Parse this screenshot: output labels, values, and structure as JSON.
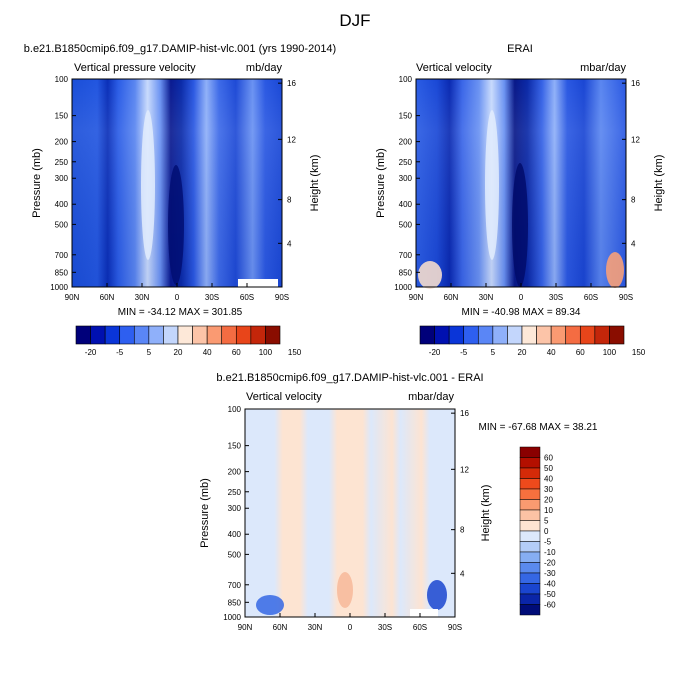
{
  "figure_title": "DJF",
  "chart_data": [
    {
      "type": "heatmap",
      "title": "b.e21.B1850cmip6.f09_g17.DAMIP-hist-vlc.001 (yrs 1990-2014)",
      "subtitle_left": "Vertical pressure velocity",
      "subtitle_right": "mb/day",
      "ylabel": "Pressure (mb)",
      "ylabel_right": "Height (km)",
      "x_ticks": [
        "90N",
        "60N",
        "30N",
        "0",
        "30S",
        "60S",
        "90S"
      ],
      "y_ticks": [
        "100",
        "150",
        "200",
        "250",
        "300",
        "400",
        "500",
        "700",
        "850",
        "1000"
      ],
      "y_ticks_right": [
        "16",
        "12",
        "8",
        "4"
      ],
      "stats": "MIN = -34.12  MAX = 301.85",
      "colorbar": {
        "orientation": "horizontal",
        "labels": [
          "-20",
          "-5",
          "5",
          "20",
          "40",
          "60",
          "100",
          "150"
        ],
        "colors": [
          "#00007a",
          "#0010b0",
          "#0a35d8",
          "#2e5ff0",
          "#5a86f6",
          "#8fb0fa",
          "#c3d6fc",
          "#fde8d8",
          "#fcc4a8",
          "#fa9a72",
          "#f46c42",
          "#e8451a",
          "#c4260a",
          "#8a0d00"
        ]
      }
    },
    {
      "type": "heatmap",
      "title": "ERAI",
      "subtitle_left": "Vertical velocity",
      "subtitle_right": "mbar/day",
      "ylabel": "Pressure (mb)",
      "ylabel_right": "Height (km)",
      "x_ticks": [
        "90N",
        "60N",
        "30N",
        "0",
        "30S",
        "60S",
        "90S"
      ],
      "y_ticks": [
        "100",
        "150",
        "200",
        "250",
        "300",
        "400",
        "500",
        "700",
        "850",
        "1000"
      ],
      "y_ticks_right": [
        "16",
        "12",
        "8",
        "4"
      ],
      "stats": "MIN = -40.98  MAX =  89.34",
      "colorbar": {
        "orientation": "horizontal",
        "labels": [
          "-20",
          "-5",
          "5",
          "20",
          "40",
          "60",
          "100",
          "150"
        ],
        "colors": [
          "#00007a",
          "#0010b0",
          "#0a35d8",
          "#2e5ff0",
          "#5a86f6",
          "#8fb0fa",
          "#c3d6fc",
          "#fde8d8",
          "#fcc4a8",
          "#fa9a72",
          "#f46c42",
          "#e8451a",
          "#c4260a",
          "#8a0d00"
        ]
      }
    },
    {
      "type": "heatmap",
      "title": "b.e21.B1850cmip6.f09_g17.DAMIP-hist-vlc.001 - ERAI",
      "subtitle_left": "Vertical velocity",
      "subtitle_right": "mbar/day",
      "ylabel": "Pressure (mb)",
      "ylabel_right": "Height (km)",
      "x_ticks": [
        "90N",
        "60N",
        "30N",
        "0",
        "30S",
        "60S",
        "90S"
      ],
      "y_ticks": [
        "100",
        "150",
        "200",
        "250",
        "300",
        "400",
        "500",
        "700",
        "850",
        "1000"
      ],
      "y_ticks_right": [
        "16",
        "12",
        "8",
        "4"
      ],
      "stats": "MIN = -67.68  MAX =  38.21",
      "colorbar": {
        "orientation": "vertical",
        "labels": [
          "60",
          "50",
          "40",
          "30",
          "20",
          "10",
          "5",
          "0",
          "-5",
          "-10",
          "-20",
          "-30",
          "-40",
          "-50",
          "-60"
        ],
        "colors": [
          "#8a0000",
          "#b30f00",
          "#d42a08",
          "#ee4a1c",
          "#f7703e",
          "#fa9a70",
          "#fcc2a4",
          "#fde4d2",
          "#dce8fb",
          "#b4cdf8",
          "#86aef3",
          "#5a8aee",
          "#3567e4",
          "#1a45cf",
          "#0a25a8",
          "#000c78"
        ]
      }
    }
  ]
}
